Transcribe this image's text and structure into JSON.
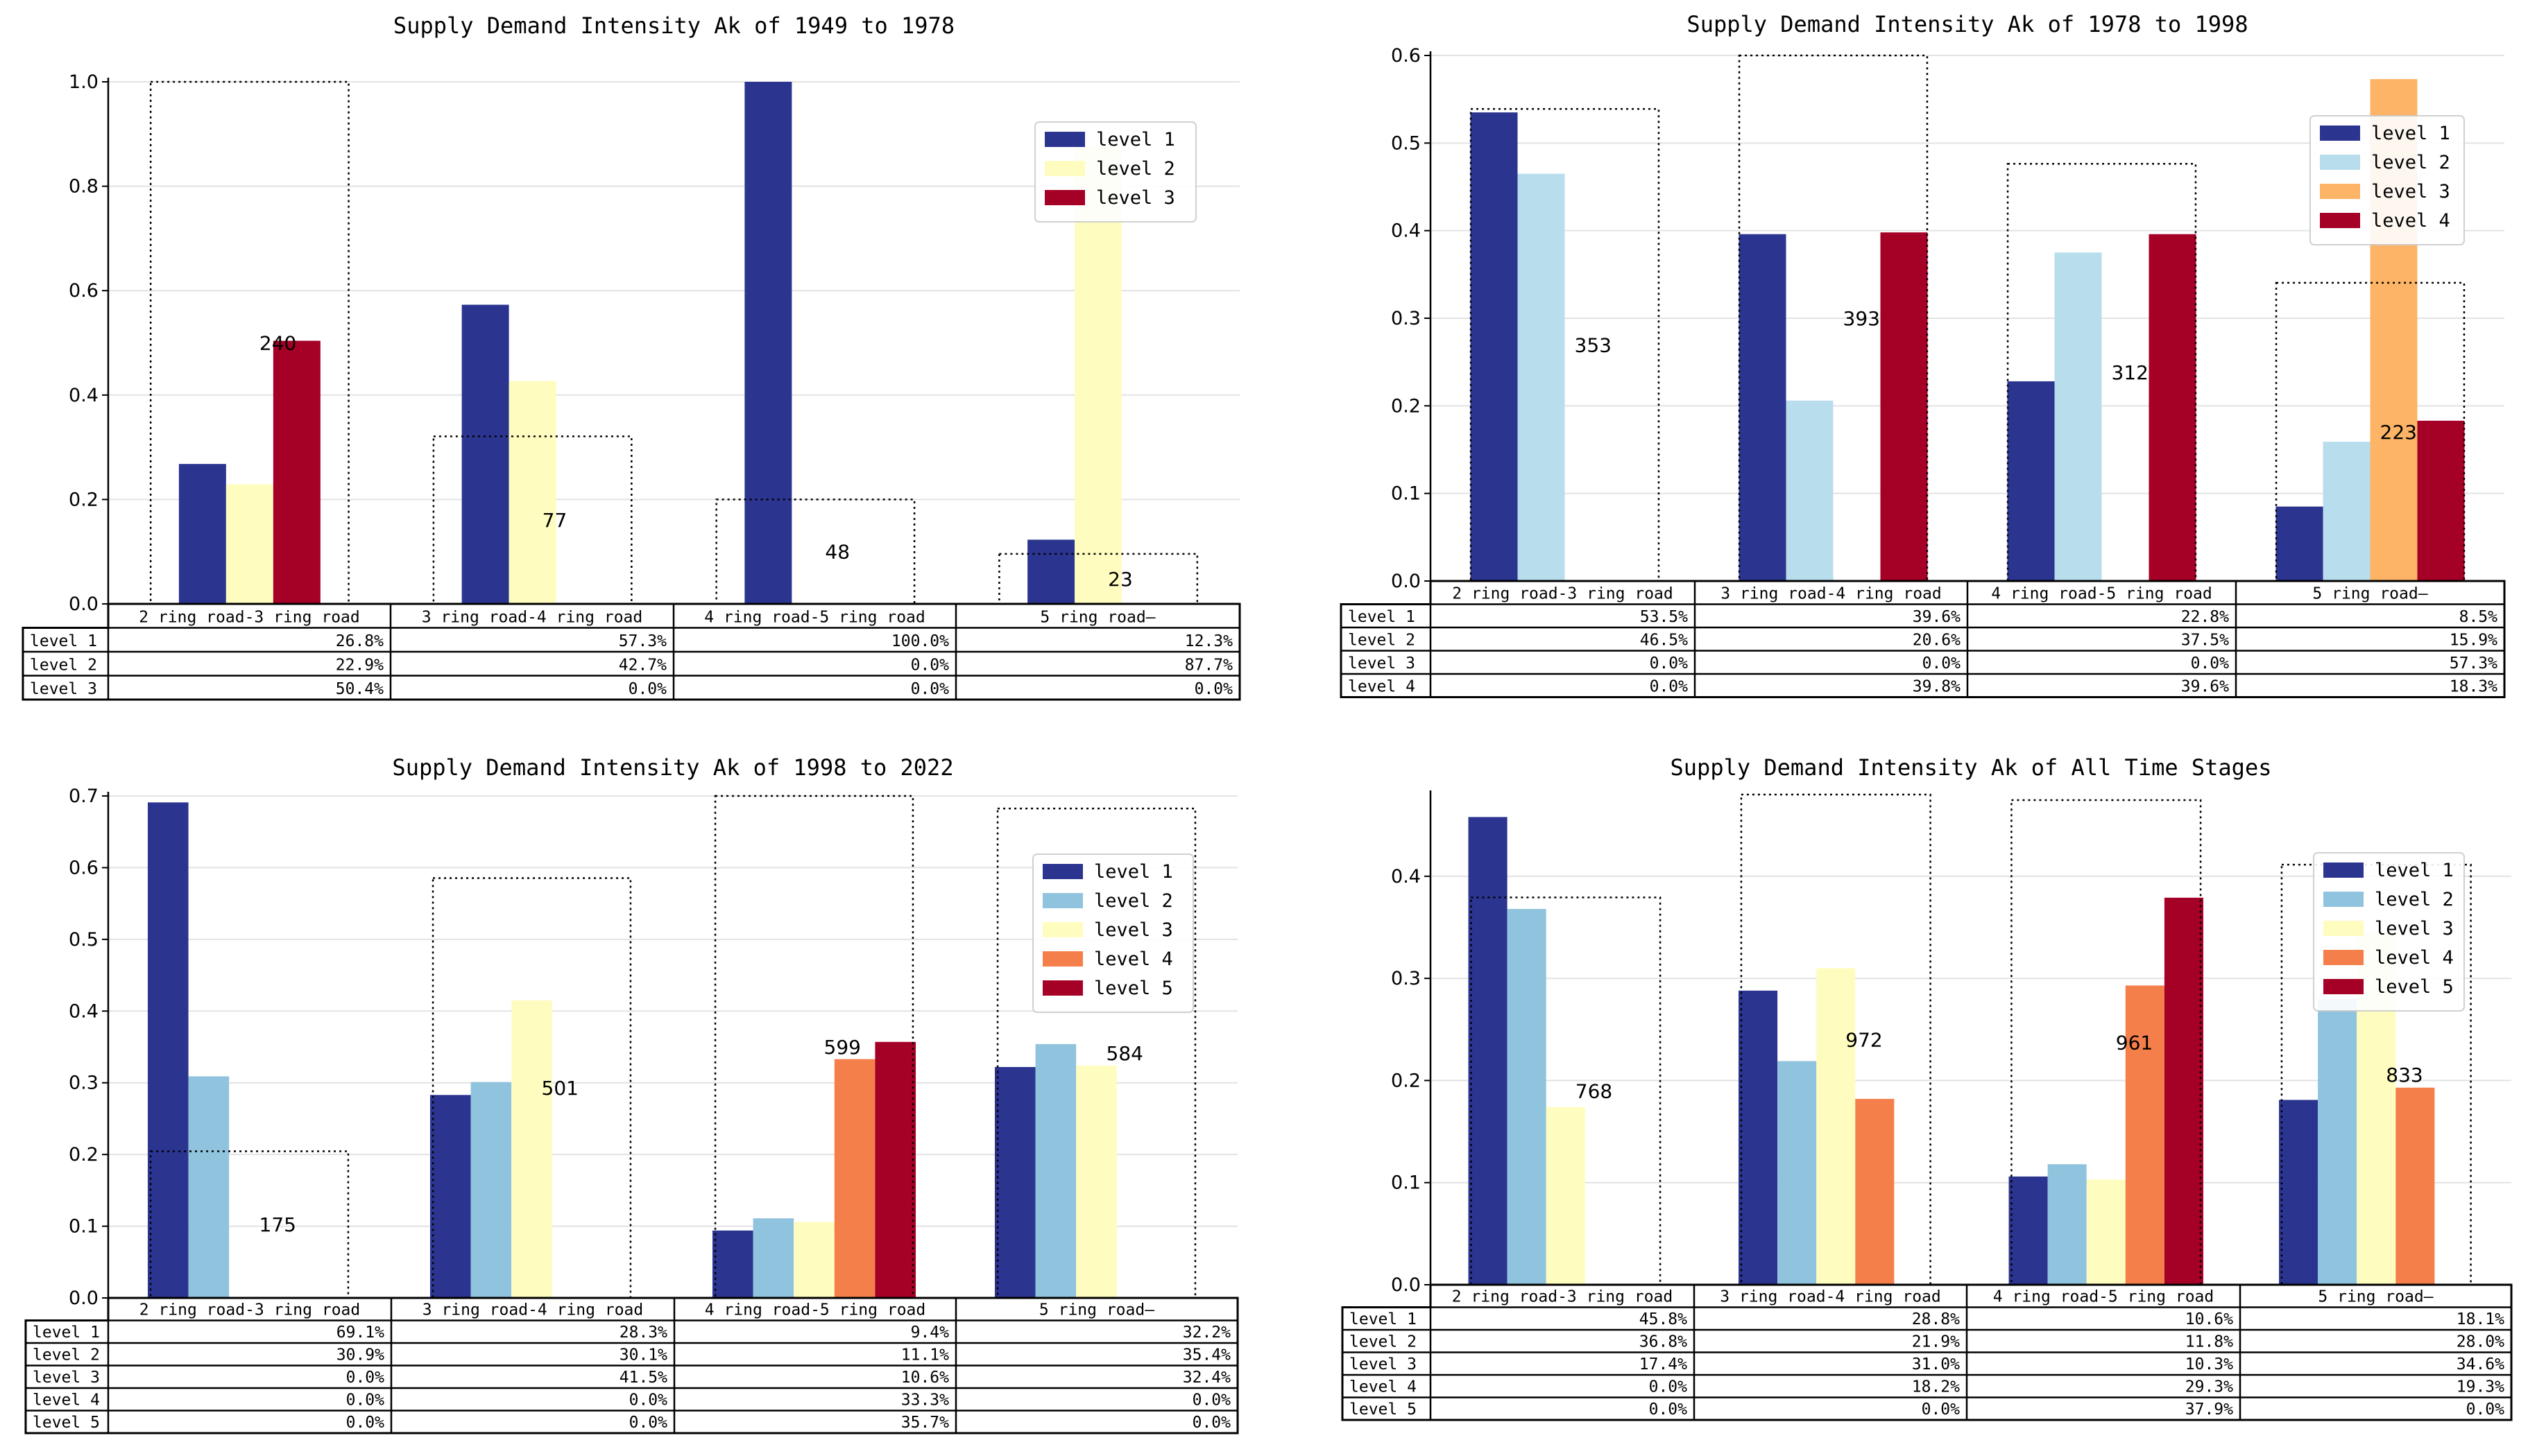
{
  "colors": {
    "level 1": "#2b3590",
    "level 2": "#fefdbf",
    "level 3": "#a50026",
    "level 2 (1978-1998)": "#b8dded",
    "level 3 (1978-1998)": "#fdb466",
    "level 2 (blue)": "#90c3de",
    "level 4": "#f57f4a"
  },
  "chart_data": [
    {
      "type": "bar",
      "title": "Supply Demand Intensity Ak of 1949 to 1978",
      "categories": [
        "2 ring road-3 ring road",
        "3 ring road-4 ring road",
        "4 ring road-5 ring road",
        "5 ring road—"
      ],
      "ylim": [
        0,
        1.0
      ],
      "yticks": [
        "0.0",
        "0.2",
        "0.4",
        "0.6",
        "0.8",
        "1.0"
      ],
      "series": [
        {
          "name": "level 1",
          "color": "#2b3590",
          "values": [
            0.268,
            0.573,
            1.0,
            0.123
          ]
        },
        {
          "name": "level 2",
          "color": "#fefdbf",
          "values": [
            0.229,
            0.427,
            0.0,
            0.877
          ]
        },
        {
          "name": "level 3",
          "color": "#a50026",
          "values": [
            0.504,
            0.0,
            0.0,
            0.0
          ]
        }
      ],
      "counts": [
        "240",
        "77",
        "48",
        "23"
      ],
      "count_values": [
        240,
        77,
        48,
        23
      ],
      "count_max": 240,
      "table": {
        "rows": [
          "level 1",
          "level 2",
          "level 3"
        ],
        "cells": [
          [
            "26.8%",
            "57.3%",
            "100.0%",
            "12.3%"
          ],
          [
            "22.9%",
            "42.7%",
            "0.0%",
            "87.7%"
          ],
          [
            "50.4%",
            "0.0%",
            "0.0%",
            "0.0%"
          ]
        ]
      }
    },
    {
      "type": "bar",
      "title": "Supply Demand Intensity Ak of 1978 to 1998",
      "categories": [
        "2 ring road-3 ring road",
        "3 ring road-4 ring road",
        "4 ring road-5 ring road",
        "5 ring road—"
      ],
      "ylim": [
        0,
        0.6
      ],
      "yticks": [
        "0.0",
        "0.1",
        "0.2",
        "0.3",
        "0.4",
        "0.5",
        "0.6"
      ],
      "series": [
        {
          "name": "level 1",
          "color": "#2b3590",
          "values": [
            0.535,
            0.396,
            0.228,
            0.085
          ]
        },
        {
          "name": "level 2",
          "color": "#b8dded",
          "values": [
            0.465,
            0.206,
            0.375,
            0.159
          ]
        },
        {
          "name": "level 3",
          "color": "#fdb466",
          "values": [
            0.0,
            0.0,
            0.0,
            0.573
          ]
        },
        {
          "name": "level 4",
          "color": "#a50026",
          "values": [
            0.0,
            0.398,
            0.396,
            0.183
          ]
        }
      ],
      "counts": [
        "353",
        "393",
        "312",
        "223"
      ],
      "count_values": [
        353,
        393,
        312,
        223
      ],
      "count_max": 393,
      "table": {
        "rows": [
          "level 1",
          "level 2",
          "level 3",
          "level 4"
        ],
        "cells": [
          [
            "53.5%",
            "39.6%",
            "22.8%",
            "8.5%"
          ],
          [
            "46.5%",
            "20.6%",
            "37.5%",
            "15.9%"
          ],
          [
            "0.0%",
            "0.0%",
            "0.0%",
            "57.3%"
          ],
          [
            "0.0%",
            "39.8%",
            "39.6%",
            "18.3%"
          ]
        ]
      }
    },
    {
      "type": "bar",
      "title": "Supply Demand Intensity Ak of 1998 to 2022",
      "categories": [
        "2 ring road-3 ring road",
        "3 ring road-4 ring road",
        "4 ring road-5 ring road",
        "5 ring road—"
      ],
      "ylim": [
        0,
        0.7
      ],
      "yticks": [
        "0.0",
        "0.1",
        "0.2",
        "0.3",
        "0.4",
        "0.5",
        "0.6",
        "0.7"
      ],
      "series": [
        {
          "name": "level 1",
          "color": "#2b3590",
          "values": [
            0.691,
            0.283,
            0.094,
            0.322
          ]
        },
        {
          "name": "level 2",
          "color": "#90c3de",
          "values": [
            0.309,
            0.301,
            0.111,
            0.354
          ]
        },
        {
          "name": "level 3",
          "color": "#fefdbf",
          "values": [
            0.0,
            0.415,
            0.106,
            0.324
          ]
        },
        {
          "name": "level 4",
          "color": "#f57f4a",
          "values": [
            0.0,
            0.0,
            0.333,
            0.0
          ]
        },
        {
          "name": "level 5",
          "color": "#a50026",
          "values": [
            0.0,
            0.0,
            0.357,
            0.0
          ]
        }
      ],
      "counts": [
        "175",
        "501",
        "599",
        "584"
      ],
      "count_values": [
        175,
        501,
        599,
        584
      ],
      "count_max": 599,
      "table": {
        "rows": [
          "level 1",
          "level 2",
          "level 3",
          "level 4",
          "level 5"
        ],
        "cells": [
          [
            "69.1%",
            "28.3%",
            "9.4%",
            "32.2%"
          ],
          [
            "30.9%",
            "30.1%",
            "11.1%",
            "35.4%"
          ],
          [
            "0.0%",
            "41.5%",
            "10.6%",
            "32.4%"
          ],
          [
            "0.0%",
            "0.0%",
            "33.3%",
            "0.0%"
          ],
          [
            "0.0%",
            "0.0%",
            "35.7%",
            "0.0%"
          ]
        ]
      }
    },
    {
      "type": "bar",
      "title": "Supply Demand Intensity Ak of All Time Stages",
      "categories": [
        "2 ring road-3 ring road",
        "3 ring road-4 ring road",
        "4 ring road-5 ring road",
        "5 ring road—"
      ],
      "ylim": [
        0,
        0.48
      ],
      "yticks": [
        "0.0",
        "0.1",
        "0.2",
        "0.3",
        "0.4"
      ],
      "series": [
        {
          "name": "level 1",
          "color": "#2b3590",
          "values": [
            0.458,
            0.288,
            0.106,
            0.181
          ]
        },
        {
          "name": "level 2",
          "color": "#90c3de",
          "values": [
            0.368,
            0.219,
            0.118,
            0.28
          ]
        },
        {
          "name": "level 3",
          "color": "#fefdbf",
          "values": [
            0.174,
            0.31,
            0.103,
            0.346
          ]
        },
        {
          "name": "level 4",
          "color": "#f57f4a",
          "values": [
            0.0,
            0.182,
            0.293,
            0.193
          ]
        },
        {
          "name": "level 5",
          "color": "#a50026",
          "values": [
            0.0,
            0.0,
            0.379,
            0.0
          ]
        }
      ],
      "counts": [
        "768",
        "972",
        "961",
        "833"
      ],
      "count_values": [
        768,
        972,
        961,
        833
      ],
      "count_max": 972,
      "table": {
        "rows": [
          "level 1",
          "level 2",
          "level 3",
          "level 4",
          "level 5"
        ],
        "cells": [
          [
            "45.8%",
            "28.8%",
            "10.6%",
            "18.1%"
          ],
          [
            "36.8%",
            "21.9%",
            "11.8%",
            "28.0%"
          ],
          [
            "17.4%",
            "31.0%",
            "10.3%",
            "34.6%"
          ],
          [
            "0.0%",
            "18.2%",
            "29.3%",
            "19.3%"
          ],
          [
            "0.0%",
            "0.0%",
            "37.9%",
            "0.0%"
          ]
        ]
      }
    }
  ]
}
